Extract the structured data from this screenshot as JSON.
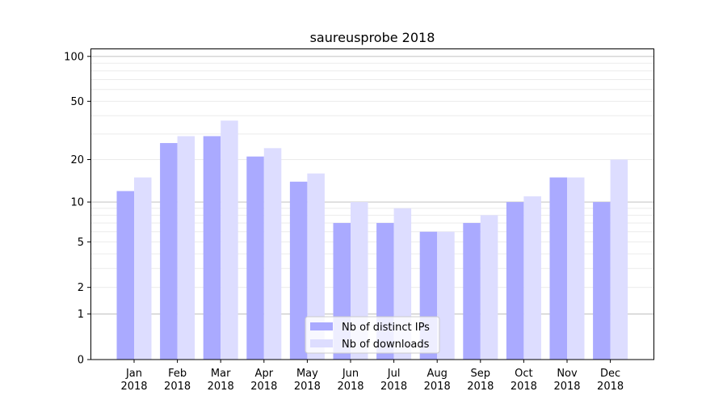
{
  "chart_data": {
    "type": "bar",
    "title": "saureusprobe 2018",
    "xlabel": "",
    "ylabel": "",
    "yscale": "log1p",
    "ylim": [
      0,
      110
    ],
    "yticks": [
      0,
      1,
      2,
      5,
      10,
      20,
      50,
      100
    ],
    "ytick_labels": [
      "0",
      "1",
      "2",
      "5",
      "10",
      "20",
      "50",
      "100"
    ],
    "categories": [
      "Jan\n2018",
      "Feb\n2018",
      "Mar\n2018",
      "Apr\n2018",
      "May\n2018",
      "Jun\n2018",
      "Jul\n2018",
      "Aug\n2018",
      "Sep\n2018",
      "Oct\n2018",
      "Nov\n2018",
      "Dec\n2018"
    ],
    "category_months": [
      "Jan",
      "Feb",
      "Mar",
      "Apr",
      "May",
      "Jun",
      "Jul",
      "Aug",
      "Sep",
      "Oct",
      "Nov",
      "Dec"
    ],
    "category_years": [
      "2018",
      "2018",
      "2018",
      "2018",
      "2018",
      "2018",
      "2018",
      "2018",
      "2018",
      "2018",
      "2018",
      "2018"
    ],
    "series": [
      {
        "name": "Nb of distinct IPs",
        "color": "#aaaaff",
        "values": [
          12,
          26,
          29,
          21,
          14,
          7,
          7,
          6,
          7,
          10,
          15,
          10
        ]
      },
      {
        "name": "Nb of downloads",
        "color": "#ddddff",
        "values": [
          15,
          29,
          37,
          24,
          16,
          10,
          9,
          6,
          8,
          11,
          15,
          20
        ]
      }
    ],
    "grid": true,
    "legend_position": "bottom-center"
  }
}
